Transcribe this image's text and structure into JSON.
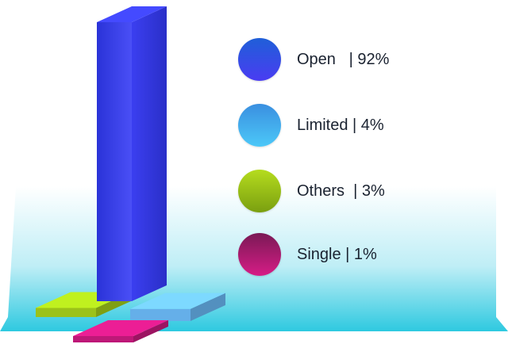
{
  "chart_data": {
    "type": "bar",
    "style": "3d",
    "categories": [
      "Open",
      "Limited",
      "Others",
      "Single"
    ],
    "values": [
      92,
      4,
      3,
      1
    ],
    "unit": "%",
    "colors": {
      "Open": "#3a3ff0",
      "Limited": "#6ab8f5",
      "Others": "#a3cc1a",
      "Single": "#c8197e"
    },
    "legend_position": "right"
  },
  "legend": {
    "items": [
      {
        "label": "Open   | 92%",
        "color_top": "#1f5fd8",
        "color_bottom": "#4a3cf2"
      },
      {
        "label": "Limited | 4%",
        "color_top": "#3a8fe0",
        "color_bottom": "#4cc8f8"
      },
      {
        "label": "Others  | 3%",
        "color_top": "#b5dc1e",
        "color_bottom": "#7a9f10"
      },
      {
        "label": "Single | 1%",
        "color_top": "#7a1a55",
        "color_bottom": "#d61c86"
      }
    ]
  },
  "background": {
    "band_top": "#ffffff",
    "band_bottom": "#2ec9e0"
  }
}
